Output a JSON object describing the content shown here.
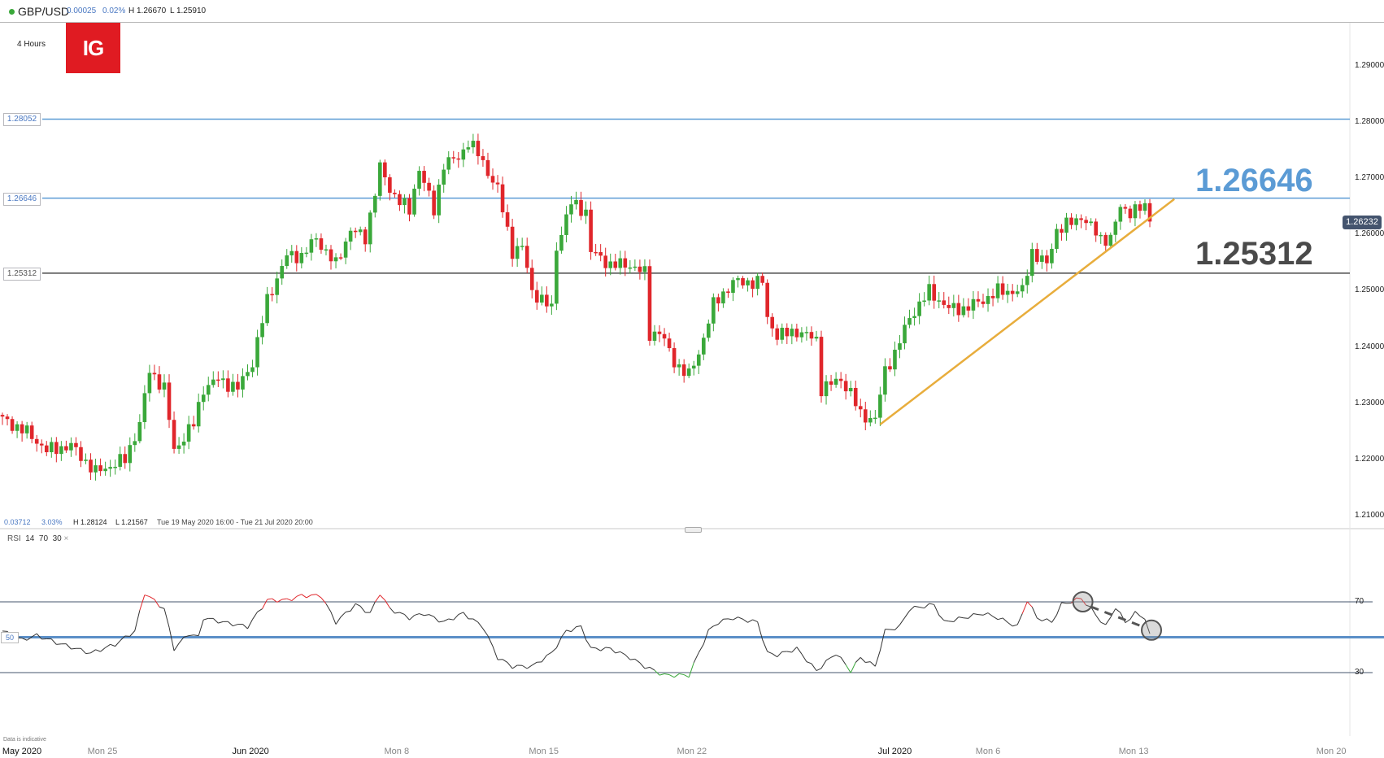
{
  "header": {
    "symbol": "GBP/USD",
    "change": "0.00025",
    "change_pct": "0.02%",
    "high": "H 1.26670",
    "low": "L 1.25910"
  },
  "timeframe": "4 Hours",
  "logo": "IG",
  "stats": {
    "range_change": "0.03712",
    "range_pct": "3.03%",
    "high": "H 1.28124",
    "low": "L 1.21567",
    "period": "Tue 19 May 2020 16:00 - Tue 21 Jul 2020 20:00"
  },
  "rsi_label": {
    "name": "RSI",
    "period": "14",
    "upper": "70",
    "lower": "30",
    "close": "×"
  },
  "disclaimer": "Data is indicative",
  "colors": {
    "up": "#3aa83a",
    "down": "#e0262b",
    "resistance": "#5b9bd5",
    "support": "#4a4a4a",
    "trend": "#e8ad3c",
    "badge": "#44546e"
  },
  "chart_data": [
    {
      "type": "candlestick",
      "title": "GBP/USD 4 Hours",
      "y_ticks": [
        "1.29000",
        "1.28000",
        "1.27000",
        "1.26000",
        "1.25000",
        "1.24000",
        "1.23000",
        "1.22000",
        "1.21000"
      ],
      "ylim": [
        1.2065,
        1.299
      ],
      "x_ticks": [
        {
          "label": "May 2020",
          "major": true
        },
        {
          "label": "Mon 25",
          "major": false
        },
        {
          "label": "Jun 2020",
          "major": true
        },
        {
          "label": "Mon 8",
          "major": false
        },
        {
          "label": "Mon 15",
          "major": false
        },
        {
          "label": "Mon 22",
          "major": false
        },
        {
          "label": "Jul 2020",
          "major": true
        },
        {
          "label": "Mon 6",
          "major": false
        },
        {
          "label": "Mon 13",
          "major": false
        },
        {
          "label": "Mon 20",
          "major": false
        }
      ],
      "last_price": "1.26232",
      "levels": [
        {
          "value": 1.28052,
          "label": "1.28052",
          "kind": "resistance",
          "big_label": ""
        },
        {
          "value": 1.26646,
          "label": "1.26646",
          "kind": "resistance",
          "big_label": "1.26646"
        },
        {
          "value": 1.25312,
          "label": "1.25312",
          "kind": "support",
          "big_label": "1.25312"
        }
      ],
      "trendline": {
        "from": [
          179,
          1.2262
        ],
        "to": [
          239,
          1.2663
        ]
      },
      "close_path_bar_price": [
        [
          0,
          1.2271
        ],
        [
          5,
          1.2248
        ],
        [
          9,
          1.2216
        ],
        [
          14,
          1.2224
        ],
        [
          19,
          1.2177
        ],
        [
          25,
          1.22
        ],
        [
          28,
          1.2263
        ],
        [
          30,
          1.2358
        ],
        [
          33,
          1.2326
        ],
        [
          35,
          1.2216
        ],
        [
          39,
          1.2263
        ],
        [
          41,
          1.2326
        ],
        [
          44,
          1.2342
        ],
        [
          48,
          1.2326
        ],
        [
          51,
          1.2373
        ],
        [
          54,
          1.2483
        ],
        [
          58,
          1.2562
        ],
        [
          61,
          1.2562
        ],
        [
          64,
          1.2593
        ],
        [
          68,
          1.2546
        ],
        [
          71,
          1.2609
        ],
        [
          74,
          1.2593
        ],
        [
          77,
          1.2719
        ],
        [
          79,
          1.268
        ],
        [
          83,
          1.2641
        ],
        [
          85,
          1.2719
        ],
        [
          88,
          1.2641
        ],
        [
          90,
          1.2727
        ],
        [
          93,
          1.2735
        ],
        [
          95,
          1.2766
        ],
        [
          97,
          1.2743
        ],
        [
          101,
          1.268
        ],
        [
          104,
          1.257
        ],
        [
          106,
          1.2578
        ],
        [
          108,
          1.2499
        ],
        [
          112,
          1.2468
        ],
        [
          113,
          1.2578
        ],
        [
          116,
          1.2656
        ],
        [
          119,
          1.2641
        ],
        [
          120,
          1.257
        ],
        [
          124,
          1.2546
        ],
        [
          128,
          1.2546
        ],
        [
          131,
          1.2531
        ],
        [
          131.5,
          1.242
        ],
        [
          134,
          1.2428
        ],
        [
          137,
          1.2373
        ],
        [
          140,
          1.2349
        ],
        [
          142,
          1.2389
        ],
        [
          145,
          1.2475
        ],
        [
          149,
          1.2515
        ],
        [
          155,
          1.2515
        ],
        [
          156,
          1.2452
        ],
        [
          158,
          1.242
        ],
        [
          162,
          1.2428
        ],
        [
          166,
          1.2413
        ],
        [
          167,
          1.2326
        ],
        [
          171,
          1.2342
        ],
        [
          173,
          1.2318
        ],
        [
          175,
          1.2279
        ],
        [
          178,
          1.2271
        ],
        [
          180,
          1.2358
        ],
        [
          182,
          1.2389
        ],
        [
          185,
          1.2452
        ],
        [
          189,
          1.2499
        ],
        [
          193,
          1.2468
        ],
        [
          196,
          1.2468
        ],
        [
          200,
          1.2483
        ],
        [
          203,
          1.2499
        ],
        [
          208,
          1.2499
        ],
        [
          210,
          1.257
        ],
        [
          213,
          1.2546
        ],
        [
          215,
          1.2609
        ],
        [
          219,
          1.2625
        ],
        [
          220,
          1.2633
        ],
        [
          224,
          1.2593
        ],
        [
          226,
          1.2593
        ],
        [
          228,
          1.2648
        ],
        [
          230,
          1.2641
        ],
        [
          233,
          1.2648
        ],
        [
          233.5,
          1.2601
        ],
        [
          234,
          1.2623
        ]
      ]
    },
    {
      "type": "line",
      "title": "RSI 14",
      "y_ticks": [
        "70",
        "50",
        "30"
      ],
      "overbought": 70,
      "midline": 50,
      "oversold": 30,
      "rsi_path_bar_value": [
        [
          0,
          53.5
        ],
        [
          4,
          48.5
        ],
        [
          7,
          51
        ],
        [
          11,
          47
        ],
        [
          18,
          41
        ],
        [
          23,
          46
        ],
        [
          27,
          53.5
        ],
        [
          29,
          75
        ],
        [
          33,
          66
        ],
        [
          35,
          43.5
        ],
        [
          38,
          52
        ],
        [
          40,
          50
        ],
        [
          41,
          61
        ],
        [
          45,
          58.5
        ],
        [
          50,
          56
        ],
        [
          54,
          71
        ],
        [
          58,
          71
        ],
        [
          61,
          73.5
        ],
        [
          65,
          73.5
        ],
        [
          68,
          58.5
        ],
        [
          72,
          68.5
        ],
        [
          75,
          63.5
        ],
        [
          77,
          75
        ],
        [
          79,
          66
        ],
        [
          83,
          61
        ],
        [
          86,
          63.5
        ],
        [
          90,
          58.5
        ],
        [
          94,
          63.5
        ],
        [
          98,
          56
        ],
        [
          101,
          38.5
        ],
        [
          104,
          33.5
        ],
        [
          108,
          33.5
        ],
        [
          112,
          41
        ],
        [
          115,
          53.5
        ],
        [
          118,
          56
        ],
        [
          120,
          43.5
        ],
        [
          124,
          43.5
        ],
        [
          128,
          38.5
        ],
        [
          131,
          33.5
        ],
        [
          135,
          28.5
        ],
        [
          140,
          28.5
        ],
        [
          144,
          53.5
        ],
        [
          146,
          58.5
        ],
        [
          149,
          61
        ],
        [
          154,
          58.5
        ],
        [
          156,
          41
        ],
        [
          158,
          40
        ],
        [
          162,
          43.5
        ],
        [
          166,
          31
        ],
        [
          170,
          41
        ],
        [
          173,
          31
        ],
        [
          175,
          38.5
        ],
        [
          178,
          33.5
        ],
        [
          180,
          53.5
        ],
        [
          183,
          56
        ],
        [
          185,
          66
        ],
        [
          190,
          68.5
        ],
        [
          192,
          58.5
        ],
        [
          196,
          61
        ],
        [
          200,
          63.5
        ],
        [
          203,
          61
        ],
        [
          207,
          56
        ],
        [
          209,
          71
        ],
        [
          211,
          61
        ],
        [
          214,
          58.5
        ],
        [
          216,
          68.5
        ],
        [
          220,
          72
        ],
        [
          222,
          66
        ],
        [
          225,
          56
        ],
        [
          227,
          67
        ],
        [
          229,
          58.5
        ],
        [
          231,
          63.5
        ],
        [
          233,
          61
        ],
        [
          234,
          52
        ]
      ],
      "annotations": [
        {
          "bar": 220,
          "value": 70
        },
        {
          "bar": 234,
          "value": 54
        }
      ]
    }
  ]
}
